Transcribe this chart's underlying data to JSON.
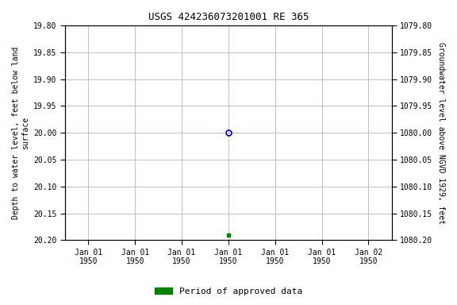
{
  "title": "USGS 424236073201001 RE 365",
  "ylabel_left": "Depth to water level, feet below land\nsurface",
  "ylabel_right": "Groundwater level above NGVD 1929, feet",
  "ylim_left": [
    19.8,
    20.2
  ],
  "ylim_right": [
    1080.2,
    1079.8
  ],
  "yticks_left": [
    19.8,
    19.85,
    19.9,
    19.95,
    20.0,
    20.05,
    20.1,
    20.15,
    20.2
  ],
  "yticks_right": [
    1080.2,
    1080.15,
    1080.1,
    1080.05,
    1080.0,
    1079.95,
    1079.9,
    1079.85,
    1079.8
  ],
  "blue_point_x": 0.0,
  "blue_point_y": 20.0,
  "green_point_x": 0.0,
  "green_point_y": 20.19,
  "xlim": [
    -3.5,
    3.5
  ],
  "xtick_positions": [
    -3.0,
    -2.0,
    -1.0,
    0.0,
    1.0,
    2.0,
    3.0
  ],
  "xtick_labels": [
    "Jan 01\n1950",
    "Jan 01\n1950",
    "Jan 01\n1950",
    "Jan 01\n1950",
    "Jan 01\n1950",
    "Jan 01\n1950",
    "Jan 02\n1950"
  ],
  "legend_label": "Period of approved data",
  "bg_color": "#ffffff",
  "grid_color": "#c0c0c0",
  "blue_color": "#0000cc",
  "green_color": "#008000",
  "title_fontsize": 9,
  "tick_fontsize": 7,
  "label_fontsize": 7,
  "legend_fontsize": 8
}
